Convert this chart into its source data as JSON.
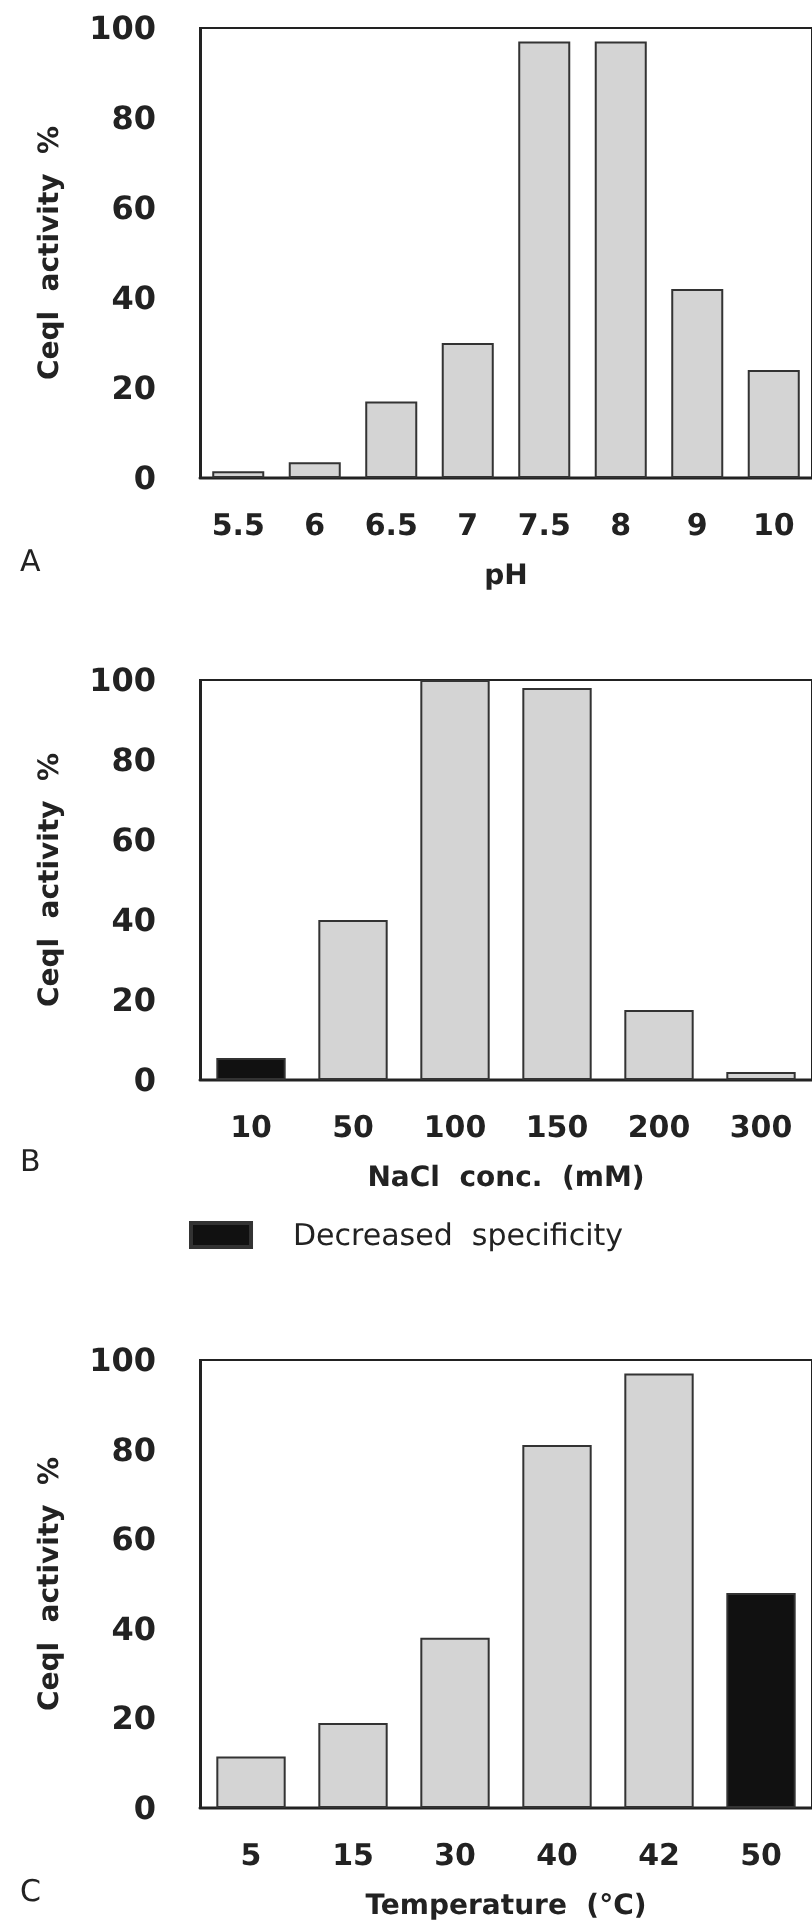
{
  "chart_data": [
    {
      "type": "bar",
      "categories": [
        "5.5",
        "6",
        "6.5",
        "7",
        "7.5",
        "8",
        "9",
        "10"
      ],
      "xlabel": "pH",
      "ylabel": "Ceql  activity  %",
      "ylim": [
        0,
        100
      ],
      "yticks": [
        0,
        20,
        40,
        60,
        80,
        100
      ],
      "annotations": [
        "A"
      ],
      "series": [
        {
          "color": "#d4d4d4",
          "values": [
            1.5,
            3.5,
            17,
            30,
            97,
            97,
            42,
            24
          ]
        }
      ]
    },
    {
      "type": "bar",
      "categories": [
        "10",
        "50",
        "100",
        "150",
        "200",
        "300"
      ],
      "xlabel": "NaCl  conc.  (mM)",
      "ylabel": "Ceql  activity  %",
      "ylim": [
        0,
        100
      ],
      "yticks": [
        0,
        20,
        40,
        60,
        80,
        100
      ],
      "annotations": [
        "B"
      ],
      "legend": "bottom",
      "series": [
        {
          "color": "#d4d4d4",
          "values": [
            null,
            40,
            100,
            98,
            17.5,
            2
          ]
        },
        {
          "name": "Decreased  specificity",
          "color": "#111111",
          "values": [
            5.5,
            null,
            null,
            null,
            null,
            null
          ]
        }
      ]
    },
    {
      "type": "bar",
      "categories": [
        "5",
        "15",
        "30",
        "40",
        "42",
        "50"
      ],
      "xlabel": "Temperature  (°C)",
      "ylabel": "Ceql  activity  %",
      "ylim": [
        0,
        100
      ],
      "yticks": [
        0,
        20,
        40,
        60,
        80,
        100
      ],
      "annotations": [
        "C"
      ],
      "series": [
        {
          "color": "#d4d4d4",
          "values": [
            11.5,
            19,
            38,
            81,
            97,
            null
          ]
        },
        {
          "color": "#111111",
          "values": [
            null,
            null,
            null,
            null,
            null,
            48
          ]
        }
      ]
    }
  ]
}
